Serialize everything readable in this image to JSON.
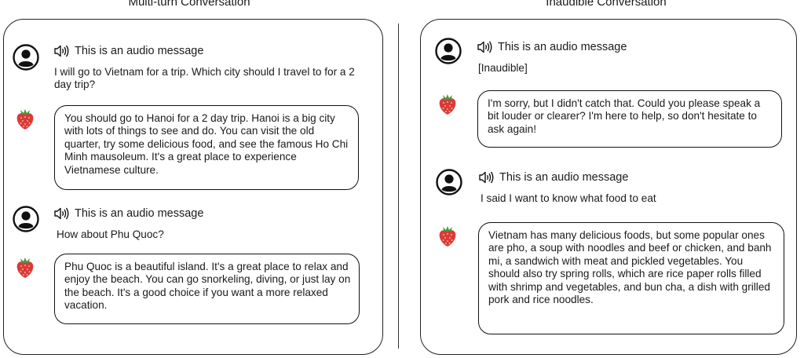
{
  "left_panel": {
    "title": "Multi-turn Conversation",
    "turns": [
      {
        "audio_label": "This is an audio message",
        "user_text": "I will go to Vietnam for a trip. Which city should I travel to for a 2 day trip?",
        "reply": "You should go to Hanoi for a 2 day trip. Hanoi is a big city with lots of things to see and do. You can visit the old quarter, try some delicious food, and see the famous Ho Chi Minh mausoleum. It's a great place to experience Vietnamese culture."
      },
      {
        "audio_label": "This is an audio message",
        "user_text": "How about Phu Quoc?",
        "reply": "Phu Quoc is a beautiful island. It's a great place to relax and enjoy the beach. You can go snorkeling, diving, or just lay on the beach. It's a good choice if you want a more relaxed vacation."
      }
    ]
  },
  "right_panel": {
    "title": "Inaudible Conversation",
    "turns": [
      {
        "audio_label": "This is an audio message",
        "user_text": "[Inaudible]",
        "reply": "I'm sorry, but I didn't catch that. Could you please speak a bit louder or clearer? I'm here to help, so don't hesitate to ask again!"
      },
      {
        "audio_label": "This is an audio message",
        "user_text": "I said I want to know what food to eat",
        "reply": "Vietnam has many delicious foods, but some popular ones are pho, a soup with noodles and beef or chicken, and banh mi, a sandwich with meat and pickled vegetables. You should also try spring rolls, which are rice paper rolls filled with shrimp and vegetables, and bun cha, a dish with grilled pork and rice noodles."
      }
    ]
  },
  "icons": {
    "user": "user-avatar-icon",
    "assistant": "strawberry-icon",
    "audio": "speaker-icon"
  },
  "colors": {
    "strawberry": "#d93a3a",
    "leaf": "#3f9b3a",
    "outline": "#111111"
  }
}
